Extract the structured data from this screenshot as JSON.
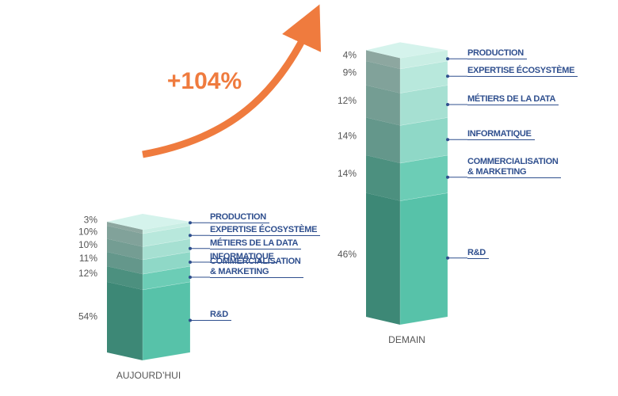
{
  "chart_data": {
    "type": "stacked-3d-column",
    "annotation": {
      "value": 104,
      "label": "+104%"
    },
    "categories": [
      "AUJOURD’HUI",
      "DEMAIN"
    ],
    "series": [
      {
        "name": "R&D",
        "color": "#57c2a9",
        "values": [
          54,
          46
        ],
        "value_labels": [
          "54%",
          "46%"
        ]
      },
      {
        "name": "COMMERCIALISATION\n& MARKETING",
        "color": "#6ccdb6",
        "values": [
          12,
          14
        ],
        "value_labels": [
          "12%",
          "14%"
        ]
      },
      {
        "name": "INFORMATIQUE",
        "color": "#8fd8c7",
        "values": [
          11,
          14
        ],
        "value_labels": [
          "11%",
          "14%"
        ]
      },
      {
        "name": "MÉTIERS DE LA DATA",
        "color": "#a6e0d2",
        "values": [
          10,
          12
        ],
        "value_labels": [
          "10%",
          "12%"
        ]
      },
      {
        "name": "EXPERTISE ÉCOSYSTÈME",
        "color": "#b8e8dc",
        "values": [
          10,
          9
        ],
        "value_labels": [
          "10%",
          "9%"
        ]
      },
      {
        "name": "PRODUCTION",
        "color": "#c9eee4",
        "values": [
          3,
          4
        ],
        "value_labels": [
          "3%",
          "4%"
        ]
      }
    ]
  }
}
